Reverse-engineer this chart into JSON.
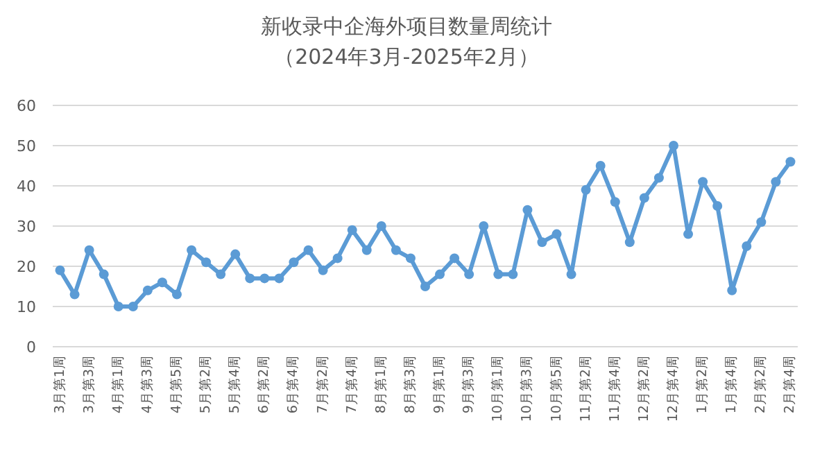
{
  "chart_data": {
    "type": "line",
    "title": "新收录中企海外项目数量周统计",
    "subtitle": "（2024年3月-2025年2月）",
    "categories": [
      "3月第1周",
      null,
      "3月第3周",
      null,
      "4月第1周",
      null,
      "4月第3周",
      null,
      "4月第5周",
      null,
      "5月第2周",
      null,
      "5月第4周",
      null,
      "6月第2周",
      null,
      "6月第4周",
      null,
      "7月第2周",
      null,
      "7月第4周",
      null,
      "8月第1周",
      null,
      "8月第3周",
      null,
      "9月第1周",
      null,
      "9月第3周",
      null,
      "10月第1周",
      null,
      "10月第3周",
      null,
      "10月第5周",
      null,
      "11月第2周",
      null,
      "11月第4周",
      null,
      "12月第2周",
      null,
      "12月第4周",
      null,
      "1月第2周",
      null,
      "1月第4周",
      null,
      "2月第2周",
      null,
      "2月第4周"
    ],
    "series": [
      {
        "color": "#5b9bd5",
        "values": [
          19,
          13,
          24,
          18,
          10,
          10,
          14,
          16,
          13,
          24,
          21,
          18,
          23,
          17,
          17,
          17,
          21,
          24,
          19,
          22,
          29,
          24,
          30,
          24,
          22,
          15,
          18,
          22,
          18,
          30,
          18,
          18,
          34,
          26,
          28,
          18,
          39,
          45,
          36,
          26,
          37,
          42,
          50,
          28,
          41,
          35,
          14,
          25,
          31,
          41,
          46
        ]
      }
    ],
    "ylim": [
      0,
      60
    ],
    "yticks": [
      0,
      10,
      20,
      30,
      40,
      50,
      60
    ],
    "grid": "y",
    "marker": "circle",
    "line_style": "solid"
  }
}
